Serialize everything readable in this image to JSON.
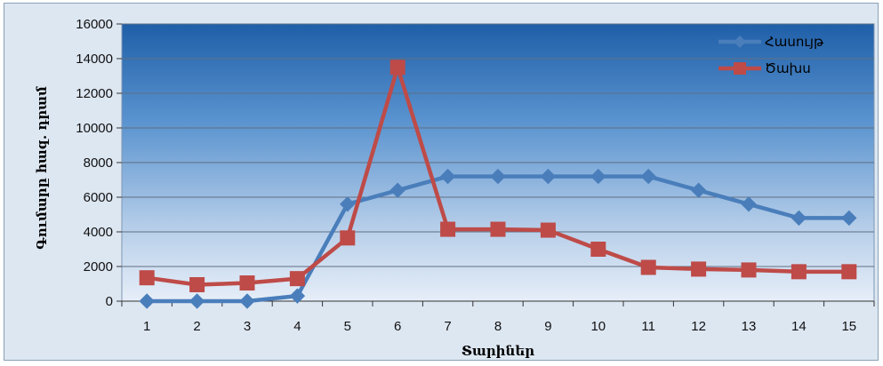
{
  "chart_data": {
    "type": "line",
    "x": [
      1,
      2,
      3,
      4,
      5,
      6,
      7,
      8,
      9,
      10,
      11,
      12,
      13,
      14,
      15
    ],
    "series": [
      {
        "name": "Հասույթ",
        "color": "#4a7ebb",
        "marker": "diamond",
        "values": [
          0,
          0,
          0,
          300,
          5600,
          6400,
          7200,
          7200,
          7200,
          7200,
          7200,
          6400,
          5600,
          4800,
          4800
        ]
      },
      {
        "name": "Ծախս",
        "color": "#be4b48",
        "marker": "square",
        "values": [
          1350,
          950,
          1050,
          1300,
          3650,
          13500,
          4150,
          4150,
          4100,
          3000,
          1950,
          1850,
          1800,
          1700,
          1700
        ]
      }
    ],
    "xlabel": "Տարիներ",
    "ylabel": "Գումարը հազ. դրամ",
    "ylim": [
      0,
      16000
    ],
    "yticks": [
      0,
      2000,
      4000,
      6000,
      8000,
      10000,
      12000,
      14000,
      16000
    ],
    "grid": true,
    "legend": "top-right"
  }
}
